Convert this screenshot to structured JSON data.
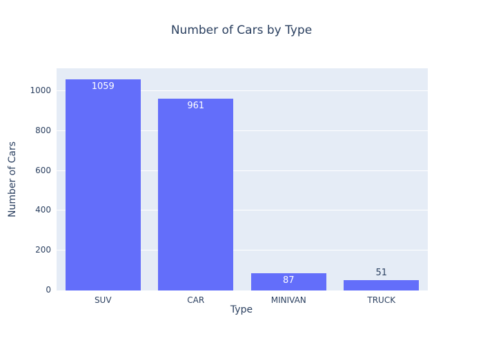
{
  "chart_data": {
    "type": "bar",
    "title": "Number of Cars by Type",
    "xlabel": "Type",
    "ylabel": "Number of Cars",
    "categories": [
      "SUV",
      "CAR",
      "MINIVAN",
      "TRUCK"
    ],
    "values": [
      1059,
      961,
      87,
      51
    ],
    "yticks": [
      0,
      200,
      400,
      600,
      800,
      1000
    ],
    "ylim": [
      0,
      1114.7
    ],
    "grid": true,
    "legend": "none",
    "bar_color": "#636efa",
    "plot_bgcolor": "#e5ecf6",
    "paper_bgcolor": "#ffffff",
    "text_color": "#2a3f5f",
    "inside_label_color": "#ffffff",
    "gridline_color": "#ffffff"
  }
}
